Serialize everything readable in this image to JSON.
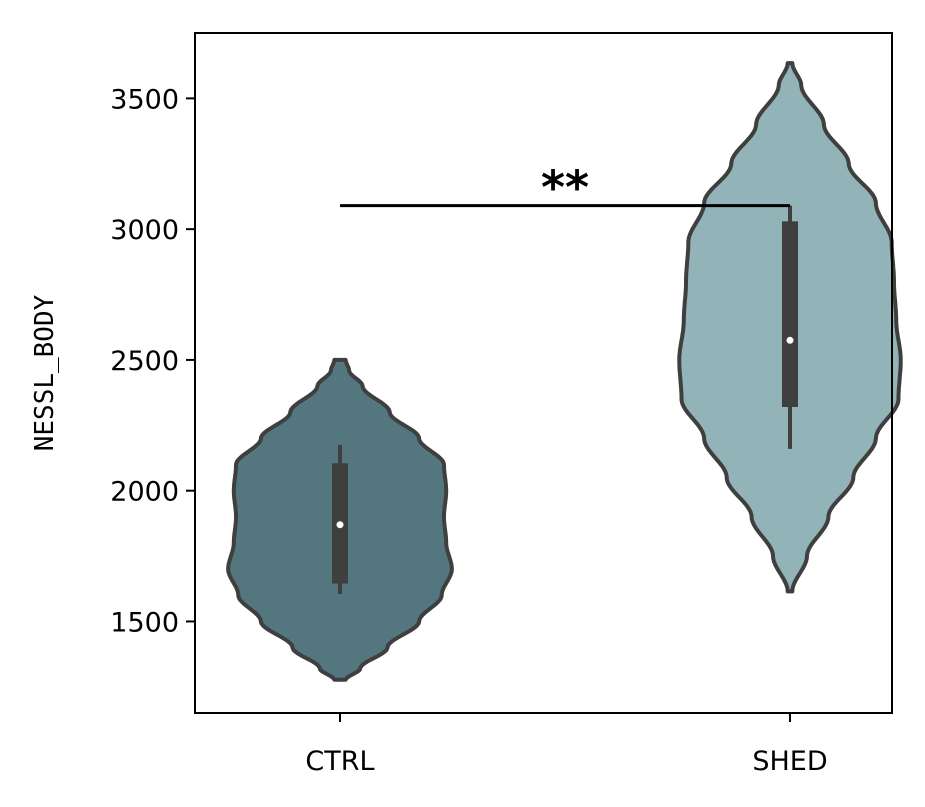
{
  "chart_data": {
    "type": "violin",
    "title": "",
    "xlabel": "",
    "ylabel": "NESSL_BODY",
    "ylim": [
      1150,
      3750
    ],
    "yticks": [
      1500,
      2000,
      2500,
      3000,
      3500
    ],
    "categories": [
      "CTRL",
      "SHED"
    ],
    "colors": {
      "CTRL": "#53767f",
      "SHED": "#92b3b8",
      "outline": "#3f3f3f",
      "median_marker": "#ffffff"
    },
    "grid": false,
    "legend": false,
    "violins": [
      {
        "category": "CTRL",
        "min": 1277,
        "max": 2500,
        "whisker_low": 1605,
        "whisker_high": 2175,
        "q1": 1645,
        "median": 1870,
        "q3": 2105,
        "density_profile": [
          [
            1277,
            0.05
          ],
          [
            1320,
            0.18
          ],
          [
            1400,
            0.42
          ],
          [
            1500,
            0.7
          ],
          [
            1600,
            0.9
          ],
          [
            1700,
            0.99
          ],
          [
            1800,
            0.94
          ],
          [
            1900,
            0.92
          ],
          [
            2000,
            0.94
          ],
          [
            2100,
            0.92
          ],
          [
            2200,
            0.7
          ],
          [
            2300,
            0.44
          ],
          [
            2400,
            0.2
          ],
          [
            2460,
            0.08
          ],
          [
            2500,
            0.05
          ]
        ]
      },
      {
        "category": "SHED",
        "min": 1615,
        "max": 3635,
        "whisker_low": 2160,
        "whisker_high": 3090,
        "q1": 2320,
        "median": 2575,
        "q3": 3030,
        "density_profile": [
          [
            1615,
            0.02
          ],
          [
            1750,
            0.15
          ],
          [
            1900,
            0.34
          ],
          [
            2050,
            0.56
          ],
          [
            2200,
            0.76
          ],
          [
            2350,
            0.96
          ],
          [
            2500,
            0.98
          ],
          [
            2650,
            0.94
          ],
          [
            2800,
            0.92
          ],
          [
            2950,
            0.9
          ],
          [
            3100,
            0.76
          ],
          [
            3250,
            0.52
          ],
          [
            3400,
            0.3
          ],
          [
            3550,
            0.1
          ],
          [
            3635,
            0.02
          ]
        ]
      }
    ],
    "annotations": [
      {
        "type": "significance-bracket",
        "from": "CTRL",
        "to": "SHED",
        "y": 3090,
        "label": "**"
      }
    ]
  }
}
